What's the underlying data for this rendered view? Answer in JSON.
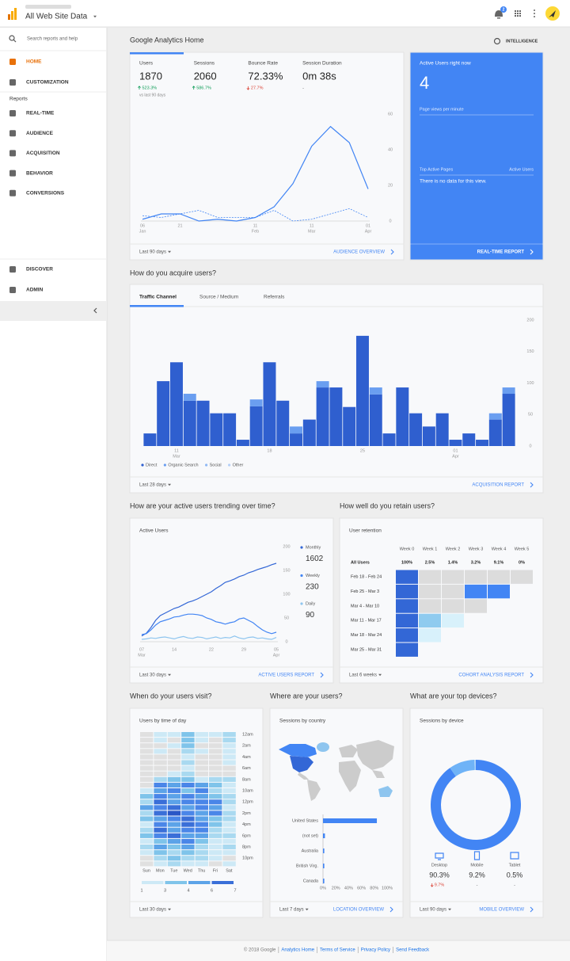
{
  "header": {
    "property": "All Web Site Data",
    "notifications": 2
  },
  "sidebar": {
    "search": "Search reports and help",
    "items_top": [
      "HOME",
      "CUSTOMIZATION"
    ],
    "section": "Reports",
    "reports": [
      "REAL-TIME",
      "AUDIENCE",
      "ACQUISITION",
      "BEHAVIOR",
      "CONVERSIONS"
    ],
    "items_bottom": [
      "DISCOVER",
      "ADMIN"
    ]
  },
  "home": {
    "title": "Google Analytics Home",
    "intelligence": "INTELLIGENCE",
    "overview": {
      "metrics": [
        {
          "name": "Users",
          "value": 1870,
          "change": "523.3%",
          "direction": "up",
          "note": "vs last 90 days"
        },
        {
          "name": "Sessions",
          "value": 2060,
          "change": "586.7%",
          "direction": "up"
        },
        {
          "name": "Bounce Rate",
          "value": "72.33%",
          "change": "27.7%",
          "direction": "down"
        },
        {
          "name": "Session Duration",
          "value": "0m 38s",
          "change": "-"
        }
      ],
      "chart": {
        "type": "line",
        "categories": [
          [
            "06",
            "Jan"
          ],
          null,
          [
            "21"
          ],
          null,
          null,
          null,
          [
            "11",
            "Feb"
          ],
          null,
          null,
          [
            "11",
            "Mar"
          ],
          null,
          null,
          [
            "01",
            "Apr"
          ]
        ],
        "series": [
          {
            "color": "#4285f4",
            "dashed": false,
            "values": [
              1,
              4,
              4,
              0,
              1,
              0,
              2,
              8,
              21,
              42,
              53,
              44,
              18
            ]
          },
          {
            "color": "#4285f4",
            "dashed": true,
            "values": [
              3,
              2,
              4,
              6,
              2,
              2,
              2,
              6,
              0,
              1,
              4,
              7,
              2
            ]
          }
        ],
        "ylim": [
          0,
          60
        ],
        "yticks": [
          0,
          20,
          40,
          60
        ]
      },
      "date_range": "Last 90 days",
      "link": "AUDIENCE OVERVIEW"
    },
    "realtime": {
      "title": "Active Users right now",
      "value": 4,
      "page_views": "Page views per minute",
      "top_pages": "Top Active Pages",
      "active_users": "Active Users",
      "empty": "There is no data for this view.",
      "link": "REAL-TIME REPORT"
    }
  },
  "acquire": {
    "title": "How do you acquire users?",
    "tabs": [
      "Traffic Channel",
      "Source / Medium",
      "Referrals"
    ],
    "chart": {
      "type": "bar",
      "stacked": true,
      "categories": [
        null,
        null,
        [
          "11",
          "Mar"
        ],
        null,
        null,
        null,
        null,
        null,
        null,
        [
          "18"
        ],
        null,
        null,
        null,
        null,
        null,
        null,
        [
          "25"
        ],
        null,
        null,
        null,
        null,
        null,
        null,
        [
          "01",
          "Apr"
        ],
        null,
        null,
        null,
        null
      ],
      "series": [
        {
          "name": "Direct",
          "color": "#2f5fcf",
          "values": [
            20,
            103,
            133,
            72,
            72,
            52,
            52,
            10,
            63,
            133,
            72,
            20,
            42,
            93,
            93,
            62,
            175,
            82,
            20,
            93,
            52,
            31,
            52,
            10,
            20,
            10,
            42,
            83
          ]
        },
        {
          "name": "Organic Search",
          "color": "#6a9ef0",
          "values": [
            0,
            0,
            0,
            11,
            0,
            0,
            0,
            0,
            11,
            0,
            0,
            11,
            0,
            10,
            0,
            0,
            0,
            11,
            0,
            0,
            0,
            0,
            0,
            0,
            0,
            0,
            10,
            10
          ]
        },
        {
          "name": "Social",
          "color": "#8fb8f5",
          "values": [
            0,
            0,
            0,
            0,
            0,
            0,
            0,
            0,
            0,
            0,
            0,
            0,
            0,
            0,
            0,
            0,
            0,
            0,
            0,
            0,
            0,
            0,
            0,
            0,
            0,
            0,
            0,
            0
          ]
        },
        {
          "name": "Other",
          "color": "#b5d0f8",
          "values": [
            0,
            0,
            0,
            0,
            0,
            0,
            0,
            0,
            0,
            0,
            0,
            0,
            0,
            0,
            0,
            0,
            0,
            0,
            0,
            0,
            0,
            0,
            0,
            0,
            0,
            0,
            0,
            0
          ]
        }
      ],
      "ylim": [
        0,
        200
      ],
      "yticks": [
        0,
        50,
        100,
        150,
        200
      ]
    },
    "date_range": "Last 28 days",
    "link": "ACQUISITION REPORT"
  },
  "trending": {
    "title": "How are your active users trending over time?",
    "card_title": "Active Users",
    "chart": {
      "type": "line",
      "categories": [
        [
          "07",
          "Mar"
        ],
        null,
        null,
        null,
        null,
        null,
        null,
        [
          "14"
        ],
        null,
        null,
        null,
        null,
        null,
        null,
        null,
        [
          "22"
        ],
        null,
        null,
        null,
        null,
        null,
        null,
        [
          "29"
        ],
        null,
        null,
        null,
        null,
        null,
        null,
        [
          "05",
          "Apr"
        ]
      ],
      "series": [
        {
          "name": "Monthly",
          "total": 1602,
          "color": "#3367d6",
          "values": [
            12,
            18,
            30,
            45,
            55,
            60,
            65,
            70,
            73,
            78,
            83,
            86,
            90,
            95,
            100,
            105,
            112,
            118,
            125,
            128,
            132,
            137,
            140,
            145,
            148,
            152,
            155,
            158,
            162,
            165
          ]
        },
        {
          "name": "Weekly",
          "total": 230,
          "color": "#4285f4",
          "values": [
            15,
            17,
            25,
            35,
            42,
            45,
            48,
            52,
            53,
            56,
            58,
            58,
            57,
            55,
            50,
            47,
            42,
            40,
            37,
            40,
            42,
            48,
            50,
            45,
            40,
            32,
            25,
            20,
            17,
            20
          ]
        },
        {
          "name": "Daily",
          "total": 90,
          "color": "#8ec5ef",
          "values": [
            5,
            6,
            8,
            7,
            9,
            10,
            8,
            6,
            9,
            11,
            8,
            7,
            10,
            9,
            6,
            8,
            10,
            7,
            9,
            8,
            12,
            8,
            6,
            9,
            10,
            7,
            8,
            6,
            5,
            9
          ]
        }
      ],
      "ylim": [
        0,
        200
      ],
      "yticks": [
        0,
        50,
        100,
        150,
        200
      ]
    },
    "date_range": "Last 30 days",
    "link": "ACTIVE USERS REPORT"
  },
  "retention": {
    "title": "How well do you retain users?",
    "card_title": "User retention",
    "columns": [
      "Week 0",
      "Week 1",
      "Week 2",
      "Week 3",
      "Week 4",
      "Week 5"
    ],
    "all_users": {
      "label": "All Users",
      "values": [
        "100%",
        "2.5%",
        "1.4%",
        "3.2%",
        "9.1%",
        "0%"
      ]
    },
    "cohorts": [
      {
        "label": "Feb 18 - Feb 24",
        "values": [
          100,
          0,
          0,
          0,
          0,
          0
        ]
      },
      {
        "label": "Feb 25 - Mar 3",
        "values": [
          100,
          0,
          0,
          9,
          9
        ]
      },
      {
        "label": "Mar 4 - Mar 10",
        "values": [
          100,
          0,
          0,
          0
        ]
      },
      {
        "label": "Mar 11 - Mar 17",
        "values": [
          100,
          4,
          1
        ]
      },
      {
        "label": "Mar 18 - Mar 24",
        "values": [
          100,
          1
        ]
      },
      {
        "label": "Mar 25 - Mar 31",
        "values": [
          100
        ]
      }
    ],
    "date_range": "Last 6 weeks",
    "link": "COHORT ANALYSIS REPORT"
  },
  "visits": {
    "title": "When do your users visit?",
    "card_title": "Users by time of day",
    "days": [
      "Sun",
      "Mon",
      "Tue",
      "Wed",
      "Thu",
      "Fri",
      "Sat"
    ],
    "hours": [
      "12am",
      "2am",
      "4am",
      "6am",
      "8am",
      "10am",
      "12pm",
      "2pm",
      "4pm",
      "6pm",
      "8pm",
      "10pm"
    ],
    "values": [
      [
        0,
        1,
        1,
        3,
        1,
        1,
        2
      ],
      [
        0,
        1,
        0,
        3,
        1,
        0,
        2
      ],
      [
        0,
        0,
        1,
        3,
        0,
        0,
        1
      ],
      [
        0,
        1,
        0,
        2,
        1,
        0,
        1
      ],
      [
        0,
        0,
        0,
        1,
        0,
        0,
        1
      ],
      [
        0,
        0,
        0,
        2,
        0,
        0,
        1
      ],
      [
        0,
        0,
        0,
        1,
        0,
        0,
        0
      ],
      [
        0,
        0,
        1,
        2,
        0,
        0,
        0
      ],
      [
        0,
        2,
        3,
        3,
        1,
        2,
        2
      ],
      [
        0,
        5,
        4,
        5,
        4,
        3,
        1
      ],
      [
        1,
        4,
        5,
        3,
        5,
        2,
        1
      ],
      [
        3,
        5,
        4,
        5,
        4,
        3,
        2
      ],
      [
        2,
        6,
        4,
        5,
        5,
        5,
        2
      ],
      [
        4,
        5,
        6,
        4,
        5,
        4,
        1
      ],
      [
        2,
        6,
        7,
        5,
        4,
        5,
        2
      ],
      [
        3,
        4,
        5,
        6,
        4,
        3,
        2
      ],
      [
        1,
        5,
        4,
        6,
        5,
        3,
        1
      ],
      [
        2,
        6,
        4,
        5,
        5,
        2,
        1
      ],
      [
        3,
        5,
        6,
        4,
        4,
        2,
        2
      ],
      [
        1,
        3,
        4,
        5,
        3,
        1,
        1
      ],
      [
        2,
        4,
        3,
        4,
        2,
        1,
        2
      ],
      [
        1,
        3,
        2,
        3,
        2,
        1,
        1
      ],
      [
        0,
        2,
        3,
        2,
        2,
        1,
        0
      ],
      [
        0,
        1,
        2,
        1,
        1,
        0,
        1
      ]
    ],
    "legend_ticks": [
      1,
      3,
      4,
      6,
      7
    ],
    "date_range": "Last 30 days"
  },
  "location": {
    "title": "Where are your users?",
    "card_title": "Sessions by country",
    "chart": {
      "type": "bar",
      "orientation": "horizontal",
      "categories": [
        "United States",
        "(not set)",
        "Australia",
        "British Virg.",
        "Canada"
      ],
      "values": [
        84,
        3,
        2,
        2,
        2
      ],
      "color": "#4285f4",
      "xlim": [
        0,
        100
      ],
      "xticks": [
        {
          "value": 0,
          "label": "0%"
        },
        {
          "value": 20,
          "label": "20%"
        },
        {
          "value": 40,
          "label": "40%"
        },
        {
          "value": 60,
          "label": "60%"
        },
        {
          "value": 80,
          "label": "80%"
        },
        {
          "value": 100,
          "label": "100%"
        }
      ]
    },
    "date_range": "Last 7 days",
    "link": "LOCATION OVERVIEW"
  },
  "devices": {
    "title": "What are your top devices?",
    "card_title": "Sessions by device",
    "chart": {
      "type": "pie",
      "donut": true,
      "categories": [
        "Desktop",
        "Mobile",
        "Tablet"
      ],
      "values": [
        90.3,
        9.2,
        0.5
      ],
      "value_labels": [
        "90.3%",
        "9.2%",
        "0.5%"
      ],
      "colors": [
        "#4285f4",
        "#6fb3f7",
        "#a9d2fa"
      ],
      "changes": [
        {
          "text": "9.7%",
          "direction": "down"
        },
        {
          "text": "-"
        },
        {
          "text": "-"
        }
      ]
    },
    "date_range": "Last 90 days",
    "link": "MOBILE OVERVIEW"
  },
  "footer": [
    "© 2018 Google",
    "Analytics Home",
    "Terms of Service",
    "Privacy Policy",
    "Send Feedback"
  ]
}
